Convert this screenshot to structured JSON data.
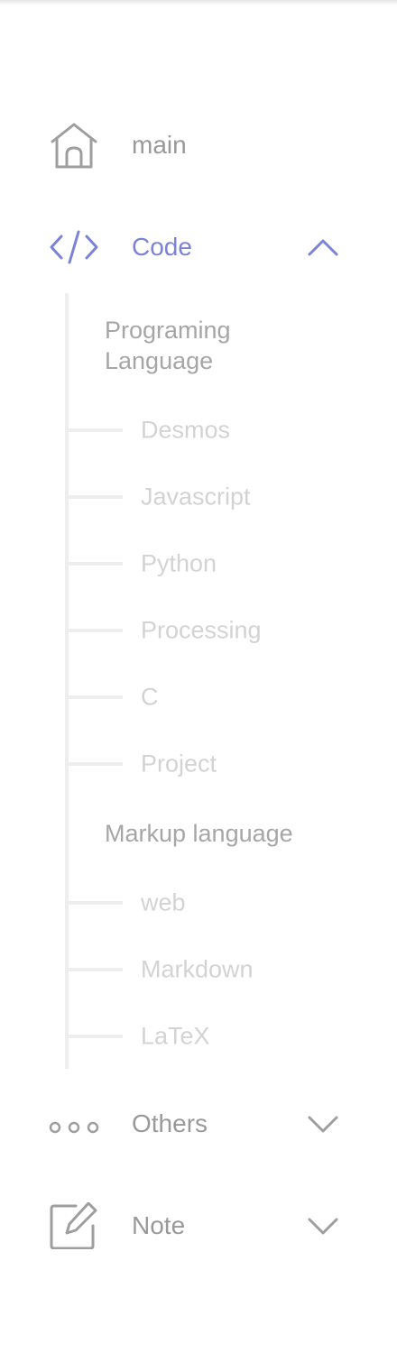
{
  "nav": {
    "main": {
      "label": "main",
      "icon": "home-icon"
    },
    "code": {
      "label": "Code",
      "icon": "code-icon",
      "expanded": true,
      "accent": "#7b83d6",
      "groups": [
        {
          "label": "Programing Language",
          "items": [
            "Desmos",
            "Javascript",
            "Python",
            "Processing",
            "C",
            "Project"
          ]
        },
        {
          "label": "Markup language",
          "items": [
            "web",
            "Markdown",
            "LaTeX"
          ]
        }
      ]
    },
    "others": {
      "label": "Others",
      "icon": "more-dots-icon",
      "expanded": false
    },
    "note": {
      "label": "Note",
      "icon": "edit-note-icon",
      "expanded": false
    }
  },
  "colors": {
    "text": "#999999",
    "accent": "#7b83d6",
    "group": "#a6a6a6",
    "sub": "#d3d3d3",
    "line": "#eeeeee"
  }
}
